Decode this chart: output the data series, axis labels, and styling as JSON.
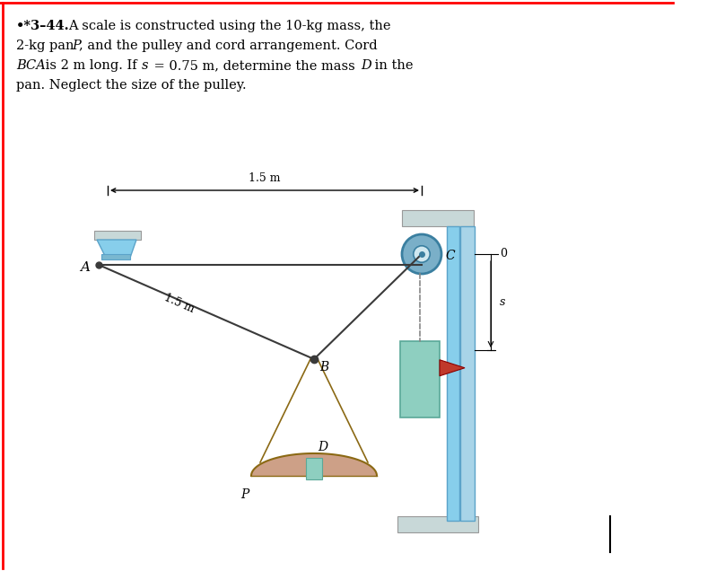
{
  "bg_color": "#ffffff",
  "fig_width": 7.88,
  "fig_height": 6.36,
  "cord_color": "#3a3a3a",
  "string_color": "#8B6914",
  "pulley_color": "#7aafc8",
  "pulley_inner": "#d0e8f0",
  "pulley_axle": "#3a7fa0",
  "mass_color": "#8ecfc0",
  "mass_edge": "#5aa898",
  "pan_color": "#c8967a",
  "pan_edge": "#8B6914",
  "flag_color": "#c0392b",
  "post_color": "#87CEEB",
  "post_edge": "#5ba3c9",
  "beam_color": "#c8d8d8",
  "beam_edge": "#999999",
  "bracket_color": "#87CEEB",
  "bracket_edge": "#5ba3c9",
  "label_A": "A",
  "label_B": "B",
  "label_C": "C",
  "label_D": "D",
  "label_P": "P",
  "label_0": "0",
  "label_s": "s",
  "dim_15_horiz": "1.5 m",
  "dim_15_diag": "1.5 m"
}
